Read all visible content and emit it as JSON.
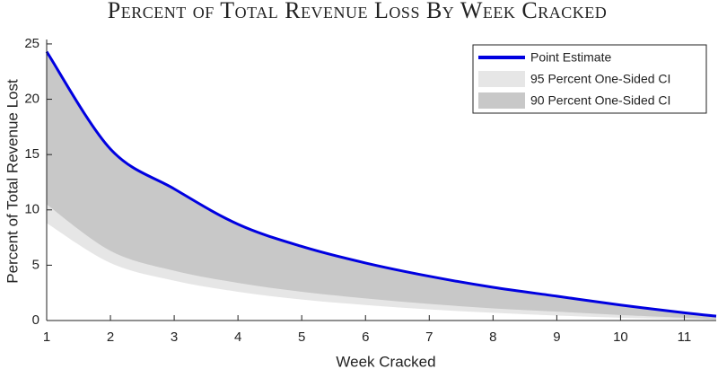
{
  "chart_data": {
    "type": "line-band",
    "title": "Percent of Total Revenue Loss By Week Cracked",
    "xlabel": "Week Cracked",
    "ylabel": "Percent of Total Revenue Lost",
    "x": [
      1,
      2,
      3,
      4,
      5,
      6,
      7,
      8,
      9,
      10,
      11,
      11.5
    ],
    "series": [
      {
        "name": "Point Estimate",
        "color": "#0000e0",
        "values": [
          24.3,
          15.5,
          11.9,
          8.7,
          6.7,
          5.2,
          4.0,
          3.0,
          2.2,
          1.4,
          0.7,
          0.4
        ]
      },
      {
        "name": "95 Percent One-Sided CI",
        "color": "#e6e6e6",
        "values": [
          8.8,
          5.2,
          3.6,
          2.6,
          1.9,
          1.4,
          1.0,
          0.7,
          0.45,
          0.25,
          0.1,
          0.05
        ]
      },
      {
        "name": "90 Percent One-Sided CI",
        "color": "#c8c8c8",
        "values": [
          10.5,
          6.3,
          4.5,
          3.4,
          2.6,
          2.0,
          1.5,
          1.1,
          0.8,
          0.5,
          0.25,
          0.1
        ]
      }
    ],
    "xlim": [
      1,
      11.5
    ],
    "xticks": [
      1,
      2,
      3,
      4,
      5,
      6,
      7,
      8,
      9,
      10,
      11
    ],
    "ylim": [
      0,
      25.4
    ],
    "yticks": [
      0,
      5,
      10,
      15,
      20,
      25
    ],
    "legend": "upper right"
  }
}
